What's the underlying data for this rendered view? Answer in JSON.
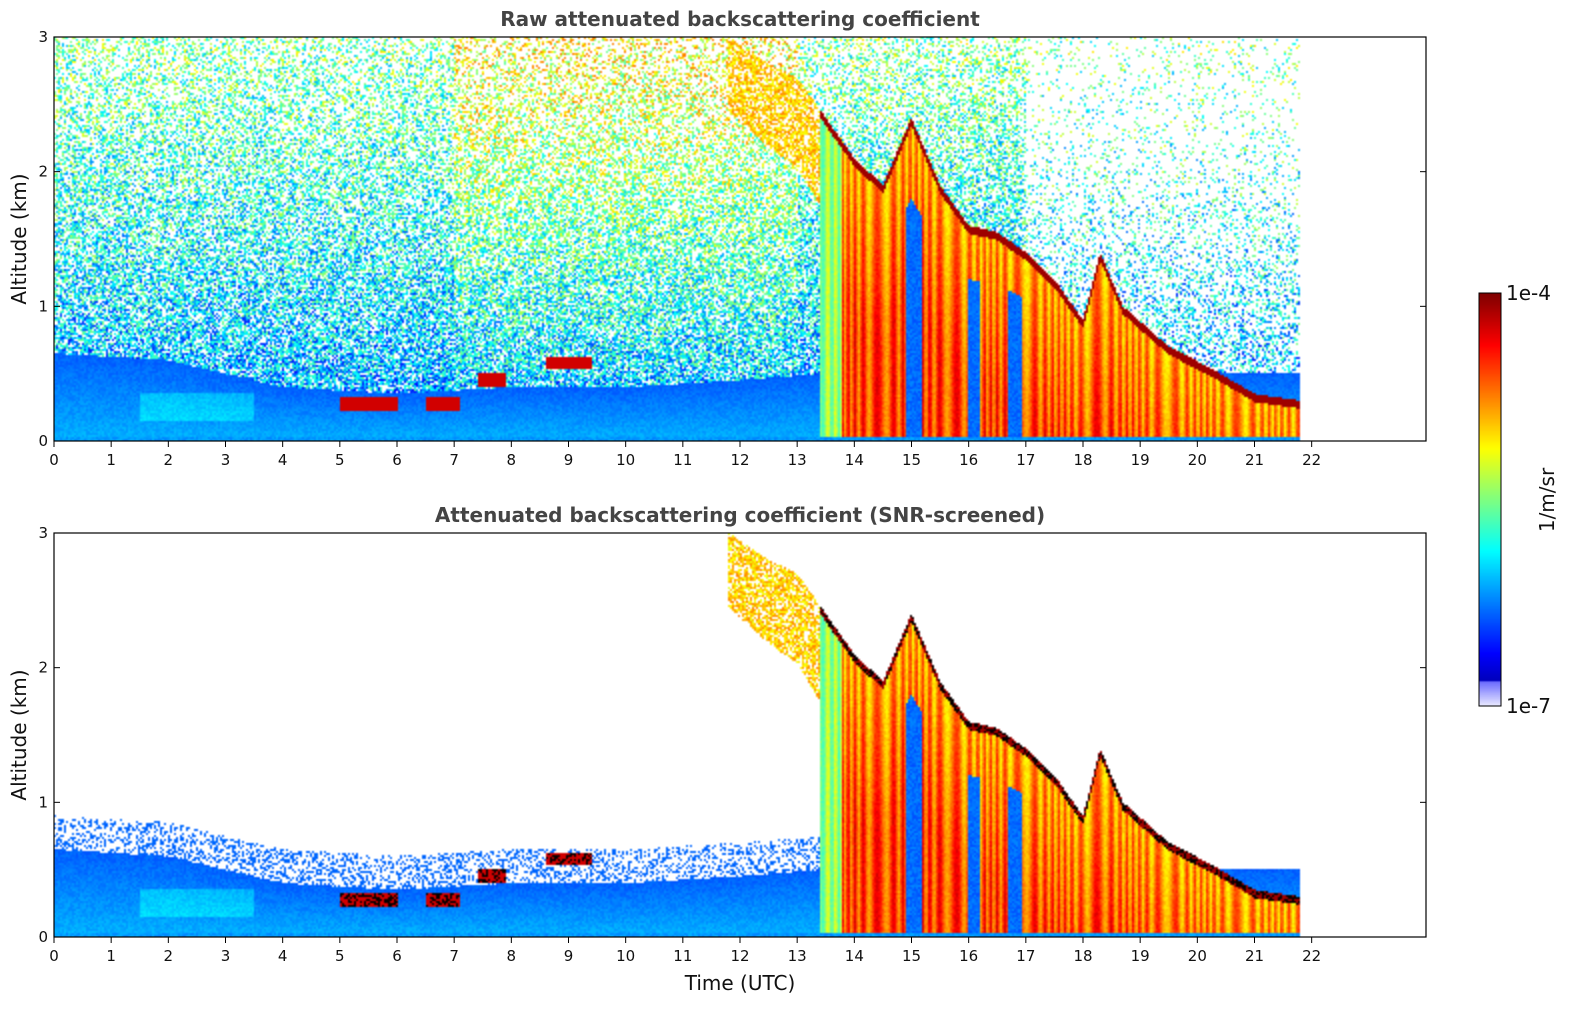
{
  "chart_data": [
    {
      "type": "heatmap",
      "title": "Raw attenuated backscattering coefficient",
      "xlabel": "",
      "ylabel": "Altitude (km)",
      "x_ticks": [
        "0",
        "1",
        "2",
        "3",
        "4",
        "5",
        "6",
        "7",
        "8",
        "9",
        "10",
        "11",
        "12",
        "13",
        "14",
        "15",
        "16",
        "17",
        "18",
        "19",
        "20",
        "21",
        "22"
      ],
      "y_ticks": [
        "0",
        "1",
        "2",
        "3"
      ],
      "xlim": [
        0,
        24
      ],
      "ylim": [
        0,
        3
      ],
      "data_end_time": 21.8,
      "screened": false
    },
    {
      "type": "heatmap",
      "title": "Attenuated backscattering coefficient (SNR-screened)",
      "xlabel": "Time (UTC)",
      "ylabel": "Altitude (km)",
      "x_ticks": [
        "0",
        "1",
        "2",
        "3",
        "4",
        "5",
        "6",
        "7",
        "8",
        "9",
        "10",
        "11",
        "12",
        "13",
        "14",
        "15",
        "16",
        "17",
        "18",
        "19",
        "20",
        "21",
        "22"
      ],
      "y_ticks": [
        "0",
        "1",
        "2",
        "3"
      ],
      "xlim": [
        0,
        24
      ],
      "ylim": [
        0,
        3
      ],
      "data_end_time": 21.8,
      "screened": true
    }
  ],
  "colorbar": {
    "label": "1/m/sr",
    "min_label": "1e-7",
    "max_label": "1e-4",
    "log_min": -7,
    "log_max": -4,
    "colormap": "jet"
  },
  "features": {
    "aerosol_layer_top_km": [
      [
        0,
        0.65
      ],
      [
        2,
        0.6
      ],
      [
        3,
        0.5
      ],
      [
        4,
        0.4
      ],
      [
        6,
        0.35
      ],
      [
        8,
        0.4
      ],
      [
        10,
        0.4
      ],
      [
        12,
        0.45
      ],
      [
        13.4,
        0.5
      ]
    ],
    "elevated_aerosol_patches": [
      [
        5.0,
        5.5,
        0.27
      ],
      [
        5.5,
        6.0,
        0.27
      ],
      [
        6.5,
        7.1,
        0.28
      ],
      [
        7.4,
        7.9,
        0.45
      ],
      [
        8.6,
        9.4,
        0.58
      ]
    ],
    "cloud_start_time": 13.4,
    "cloud_top_km": [
      [
        11.8,
        3.0
      ],
      [
        12.5,
        2.8
      ],
      [
        13.0,
        2.7
      ],
      [
        13.5,
        2.4
      ],
      [
        14.0,
        2.1
      ],
      [
        14.5,
        1.9
      ],
      [
        15.0,
        2.4
      ],
      [
        15.5,
        1.9
      ],
      [
        16.0,
        1.6
      ],
      [
        16.5,
        1.55
      ],
      [
        17.0,
        1.4
      ],
      [
        17.5,
        1.2
      ],
      [
        18.0,
        0.9
      ],
      [
        18.3,
        1.4
      ],
      [
        18.7,
        1.0
      ],
      [
        19.5,
        0.7
      ],
      [
        20.2,
        0.55
      ],
      [
        20.6,
        0.45
      ],
      [
        21.0,
        0.35
      ],
      [
        21.8,
        0.3
      ]
    ],
    "clear_gaps": [
      [
        14.9,
        15.2
      ],
      [
        16.0,
        16.2
      ],
      [
        16.7,
        16.95
      ]
    ]
  }
}
